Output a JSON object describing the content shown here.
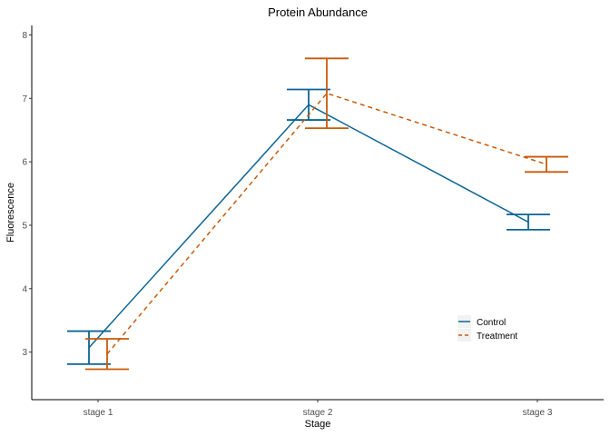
{
  "chart_data": {
    "type": "line",
    "title": "Protein Abundance",
    "xlabel": "Stage",
    "ylabel": "Fluorescence",
    "categories": [
      "stage 1",
      "stage 2",
      "stage 3"
    ],
    "ylim": [
      2.25,
      8.15
    ],
    "yticks": [
      3,
      4,
      5,
      6,
      7,
      8
    ],
    "grid": false,
    "legend_position": "bottom-right",
    "series": [
      {
        "name": "Control",
        "color": "#0b6594",
        "linestyle": "solid",
        "values": [
          3.07,
          6.9,
          5.05
        ],
        "error_low": [
          2.81,
          6.66,
          4.93
        ],
        "error_high": [
          3.33,
          7.14,
          5.17
        ]
      },
      {
        "name": "Treatment",
        "color": "#c85a0a",
        "linestyle": "dashed",
        "values": [
          2.97,
          7.08,
          5.96
        ],
        "error_low": [
          2.73,
          6.53,
          5.84
        ],
        "error_high": [
          3.21,
          7.63,
          6.08
        ]
      }
    ]
  }
}
